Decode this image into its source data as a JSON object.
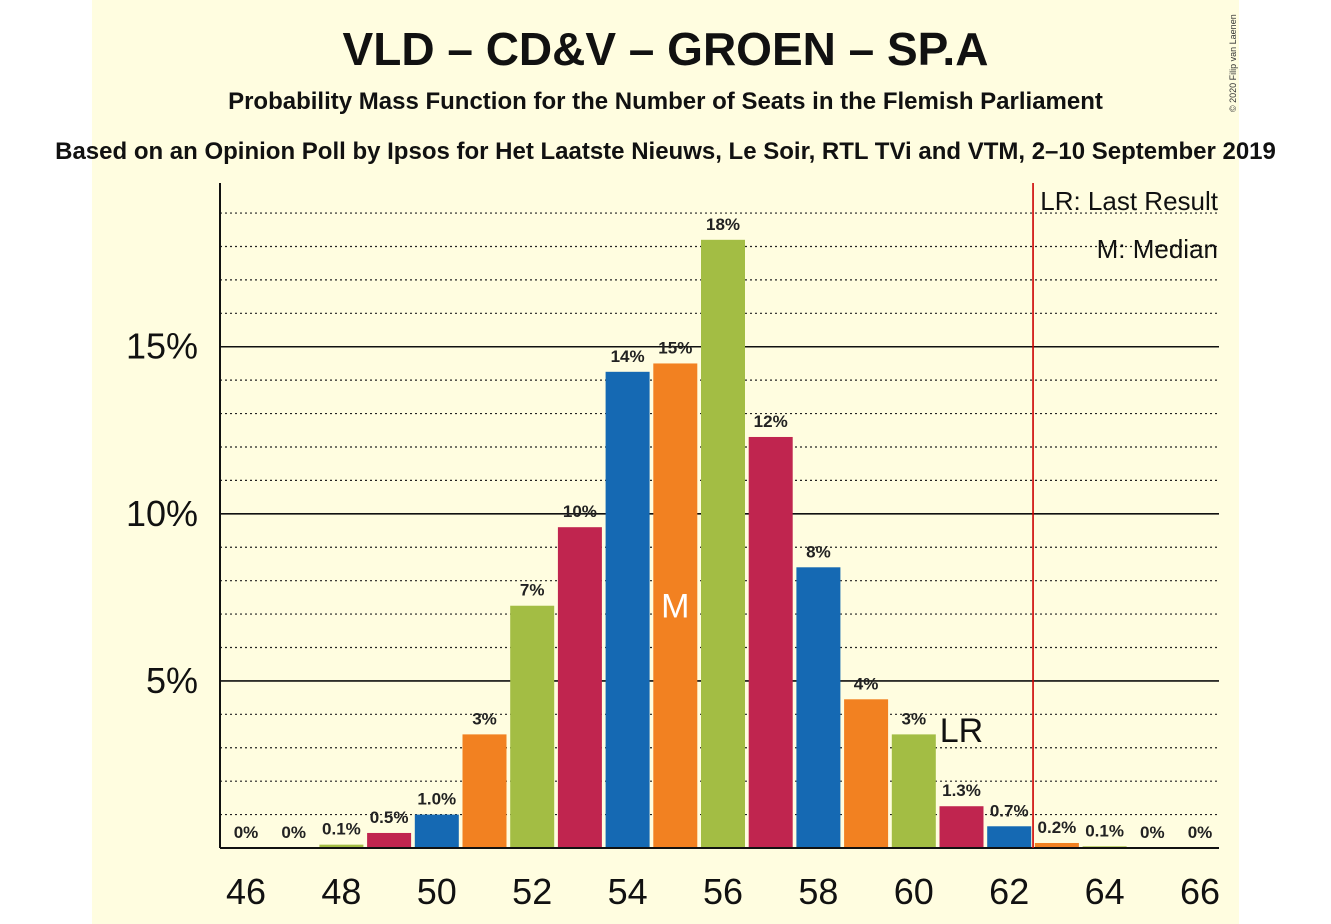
{
  "title": "VLD – CD&V – GROEN – SP.A",
  "subtitle": "Probability Mass Function for the Number of Seats in the Flemish Parliament",
  "source": "Based on an Opinion Poll by Ipsos for Het Laatste Nieuws, Le Soir, RTL TVi and VTM, 2–10 September 2019",
  "copyright": "© 2020 Filip van Laenen",
  "legend": {
    "last_result": "LR: Last Result",
    "median": "M: Median"
  },
  "markers": {
    "median_label": "M",
    "last_result_label": "LR"
  },
  "chart_data": {
    "type": "bar",
    "categories": [
      46,
      47,
      48,
      49,
      50,
      51,
      52,
      53,
      54,
      55,
      56,
      57,
      58,
      59,
      60,
      61,
      62,
      63,
      64,
      65,
      66
    ],
    "values": [
      0,
      0,
      0.1,
      0.45,
      1.0,
      3.4,
      7.25,
      9.6,
      14.25,
      14.5,
      18.2,
      12.3,
      8.4,
      4.45,
      3.4,
      1.25,
      0.65,
      0.15,
      0.05,
      0,
      0
    ],
    "data_labels": [
      "0%",
      "0%",
      "0.1%",
      "0.5%",
      "1.0%",
      "3%",
      "7%",
      "10%",
      "14%",
      "15%",
      "18%",
      "12%",
      "8%",
      "4%",
      "3%",
      "1.3%",
      "0.7%",
      "0.2%",
      "0.1%",
      "0%",
      "0%"
    ],
    "bar_colors": [
      "#1569b3",
      "#f28121",
      "#a3bd44",
      "#c0254f",
      "#1569b3",
      "#f28121",
      "#a3bd44",
      "#c0254f",
      "#1569b3",
      "#f28121",
      "#a3bd44",
      "#c0254f",
      "#1569b3",
      "#f28121",
      "#a3bd44",
      "#c0254f",
      "#1569b3",
      "#f28121",
      "#a3bd44",
      "#c0254f",
      "#1569b3"
    ],
    "x_tick_labels": [
      "46",
      "48",
      "50",
      "52",
      "54",
      "56",
      "58",
      "60",
      "62",
      "64",
      "66"
    ],
    "y_ticks": [
      5,
      10,
      15
    ],
    "y_tick_labels": [
      "5%",
      "10%",
      "15%"
    ],
    "ylim": [
      0,
      19.9
    ],
    "median_seat": 55,
    "last_result_seat": 61,
    "majority_line": 62.5,
    "majority_line_color": "#cc0000",
    "grid": true,
    "legend_position": "top-right"
  }
}
